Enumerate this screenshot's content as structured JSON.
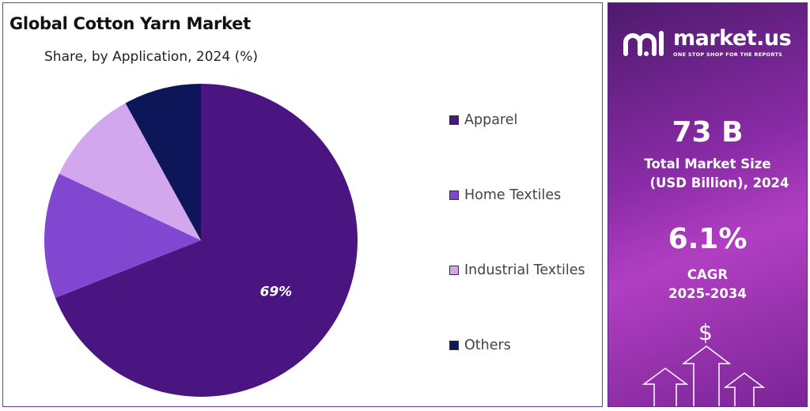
{
  "chart": {
    "title": "Global Cotton Yarn Market",
    "subtitle": "Share, by Application, 2024 (%)"
  },
  "chart_data": {
    "type": "pie",
    "title": "Global Cotton Yarn Market",
    "subtitle": "Share, by Application, 2024 (%)",
    "categories": [
      "Apparel",
      "Home Textiles",
      "Industrial Textiles",
      "Others"
    ],
    "values": [
      69,
      13,
      10,
      8
    ],
    "colors": [
      "#4a1580",
      "#8247d0",
      "#d2a7ee",
      "#0c1659"
    ],
    "data_labels": [
      "69%",
      "",
      "",
      ""
    ],
    "legend_position": "right"
  },
  "legend": [
    {
      "label": "Apparel",
      "color": "#4a1580"
    },
    {
      "label": "Home Textiles",
      "color": "#8247d0"
    },
    {
      "label": "Industrial Textiles",
      "color": "#d2a7ee"
    },
    {
      "label": "Others",
      "color": "#0c1659"
    }
  ],
  "sidebar": {
    "brand_name": "market.us",
    "brand_tagline": "ONE STOP SHOP FOR THE REPORTS",
    "market_size_value": "73 B",
    "market_size_label_line1": "Total Market Size",
    "market_size_label_line2": "(USD Billion), 2024",
    "cagr_value": "6.1%",
    "cagr_label_line1": "CAGR",
    "cagr_label_line2": "2025-2034",
    "icons": [
      "logo-icon",
      "dollar-icon",
      "arrow-up-icon"
    ]
  }
}
